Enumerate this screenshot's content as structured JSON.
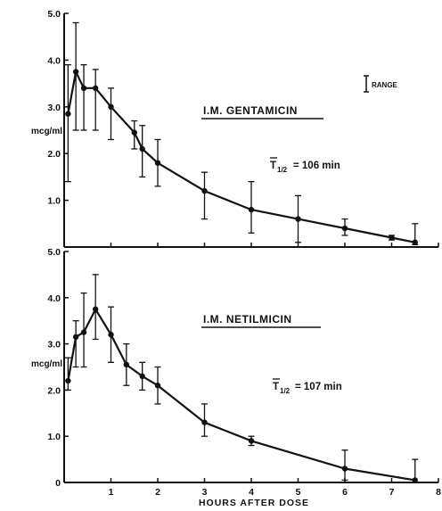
{
  "chart_data": [
    {
      "type": "line",
      "title": "I.M. GENTAMICIN",
      "annotation": {
        "t_half_prefix": "T",
        "t_half_sub": "1/2",
        "t_half_value": "= 106 min"
      },
      "ylabel": "mcg/ml",
      "ylim": [
        0,
        5
      ],
      "xlim": [
        0,
        8
      ],
      "yticks": [
        "1.0",
        "2.0",
        "3.0",
        "4.0",
        "5.0"
      ],
      "x": [
        0.083,
        0.25,
        0.42,
        0.67,
        1.0,
        1.5,
        1.67,
        2.0,
        3.0,
        4.0,
        5.0,
        6.0,
        7.0,
        7.5
      ],
      "y": [
        2.85,
        3.75,
        3.4,
        3.4,
        3.0,
        2.45,
        2.1,
        1.8,
        1.2,
        0.8,
        0.6,
        0.4,
        0.2,
        0.1
      ],
      "error_low": [
        1.4,
        2.5,
        2.5,
        2.5,
        2.3,
        2.1,
        1.5,
        1.3,
        0.6,
        0.3,
        0.1,
        0.25,
        0.15,
        0.05
      ],
      "error_high": [
        3.9,
        4.8,
        3.9,
        3.8,
        3.4,
        2.7,
        2.6,
        2.3,
        1.6,
        1.4,
        1.1,
        0.6,
        0.25,
        0.5
      ],
      "legend": "RANGE"
    },
    {
      "type": "line",
      "title": "I.M. NETILMICIN",
      "annotation": {
        "t_half_prefix": "T",
        "t_half_sub": "1/2",
        "t_half_value": "= 107 min"
      },
      "ylabel": "mcg/ml",
      "ylim": [
        0,
        5
      ],
      "xlim": [
        0,
        8
      ],
      "xlabel": "HOURS AFTER DOSE",
      "xticks": [
        "1",
        "2",
        "3",
        "4",
        "5",
        "6",
        "7",
        "8"
      ],
      "yticks": [
        "0",
        "1.0",
        "2.0",
        "3.0",
        "4.0",
        "5.0"
      ],
      "x": [
        0.083,
        0.25,
        0.42,
        0.67,
        1.0,
        1.33,
        1.67,
        2.0,
        3.0,
        4.0,
        6.0,
        7.5
      ],
      "y": [
        2.2,
        3.15,
        3.25,
        3.75,
        3.2,
        2.55,
        2.3,
        2.1,
        1.3,
        0.9,
        0.3,
        0.05
      ],
      "error_low": [
        2.0,
        2.5,
        2.5,
        3.1,
        2.6,
        2.1,
        2.0,
        1.7,
        1.0,
        0.8,
        0.05,
        0.0
      ],
      "error_high": [
        2.7,
        3.5,
        4.1,
        4.5,
        3.8,
        3.0,
        2.6,
        2.5,
        1.7,
        1.0,
        0.7,
        0.5
      ]
    }
  ]
}
